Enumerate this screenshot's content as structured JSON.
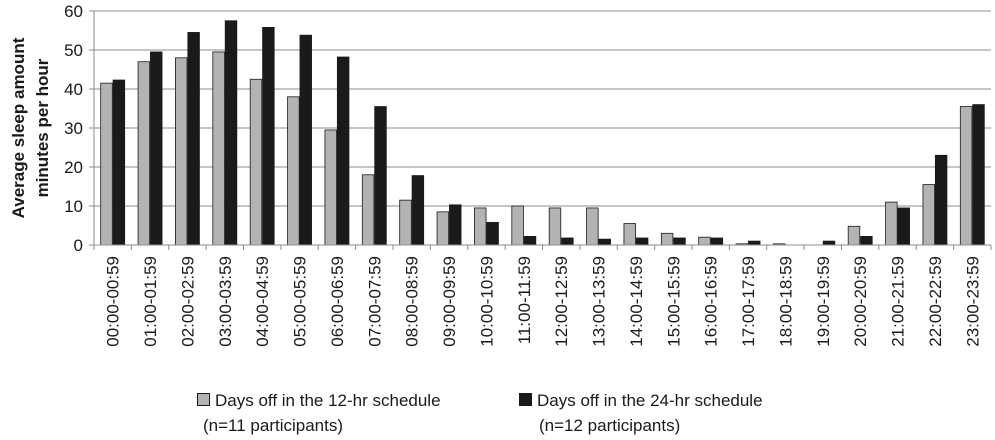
{
  "chart_data": {
    "type": "bar",
    "ylabel_lines": [
      "Average sleep amount",
      "minutes per hour"
    ],
    "ylim": [
      0,
      60
    ],
    "yticks": [
      0,
      10,
      20,
      30,
      40,
      50,
      60
    ],
    "grid": true,
    "legend_position": "bottom",
    "categories": [
      "00:00-00:59",
      "01:00-01:59",
      "02:00-02:59",
      "03:00-03:59",
      "04:00-04:59",
      "05:00-05:59",
      "06:00-06:59",
      "07:00-07:59",
      "08:00-08:59",
      "09:00-09:59",
      "10:00-10:59",
      "11:00-11:59",
      "12:00-12:59",
      "13:00-13:59",
      "14:00-14:59",
      "15:00-15:59",
      "16:00-16:59",
      "17:00-17:59",
      "18:00-18:59",
      "19:00-19:59",
      "20:00-20:59",
      "21:00-21:59",
      "22:00-22:59",
      "23:00-23:59"
    ],
    "series": [
      {
        "name": "Days off in the 12-hr schedule",
        "note": "(n=11 participants)",
        "color": "#b3b3b3",
        "values": [
          41.5,
          47,
          48,
          49.5,
          42.5,
          38,
          29.5,
          18,
          11.5,
          8.5,
          9.5,
          10,
          9.5,
          9.5,
          5.5,
          3,
          2,
          0.3,
          0.3,
          0,
          4.8,
          11,
          15.5,
          35.5
        ]
      },
      {
        "name": "Days off in the 24-hr schedule",
        "note": "(n=12 participants)",
        "color": "#1a1a1a",
        "values": [
          42.3,
          49.5,
          54.5,
          57.5,
          55.8,
          53.8,
          48.2,
          35.5,
          17.8,
          10.3,
          5.8,
          2.2,
          1.8,
          1.5,
          1.8,
          1.8,
          1.8,
          1,
          0,
          1,
          2.2,
          9.5,
          23,
          36
        ]
      }
    ]
  }
}
